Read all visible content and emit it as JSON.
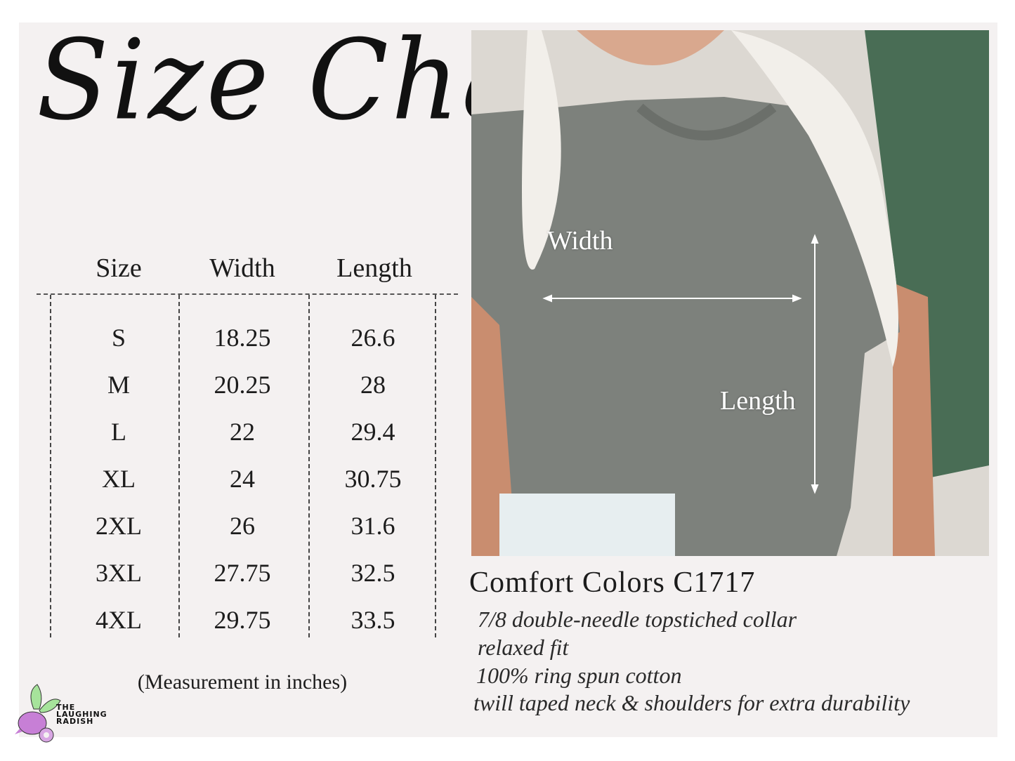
{
  "title": "Size Chart",
  "table": {
    "headers": [
      "Size",
      "Width",
      "Length"
    ],
    "rows": [
      [
        "S",
        "18.25",
        "26.6"
      ],
      [
        "M",
        "20.25",
        "28"
      ],
      [
        "L",
        "22",
        "29.4"
      ],
      [
        "XL",
        "24",
        "30.75"
      ],
      [
        "2XL",
        "26",
        "31.6"
      ],
      [
        "3XL",
        "27.75",
        "32.5"
      ],
      [
        "4XL",
        "29.75",
        "33.5"
      ]
    ],
    "note": "(Measurement in inches)"
  },
  "photo": {
    "width_label": "Width",
    "length_label": "Length"
  },
  "product": {
    "name": "Comfort Colors C1717",
    "features": [
      "7/8 double-needle topstiched collar",
      "relaxed fit",
      "100% ring spun cotton",
      "twill taped neck & shoulders for extra durability"
    ]
  },
  "logo": {
    "lines": [
      "THE",
      "LAUGHING",
      "RADISH"
    ]
  },
  "colors": {
    "background": "#f4f1f1",
    "shirt": "#7d817c",
    "radish": "#c77fd6",
    "leaves": "#a6e39b"
  }
}
